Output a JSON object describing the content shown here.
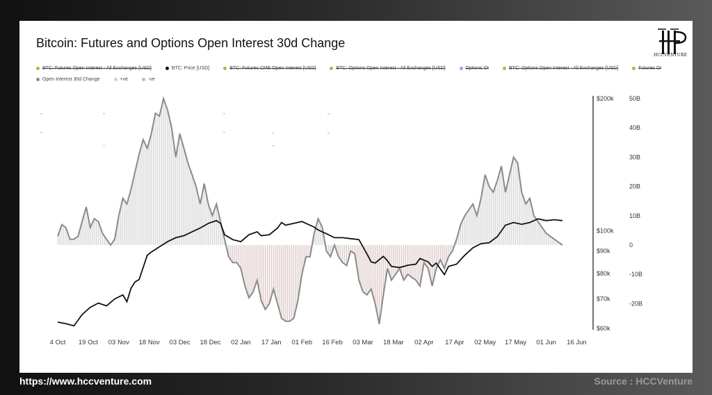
{
  "title": "Bitcoin: Futures and Options Open Interest 30d Change",
  "logo": {
    "text": "HCCVENTURE"
  },
  "footer": {
    "url": "https://www.hccventure.com",
    "source": "Source : HCCVenture"
  },
  "colors": {
    "price": "#111111",
    "oi_line": "#8a8a8a",
    "positive_fill": "#dcdcdc",
    "negative_fill": "#f3c6c6",
    "negative_hatch": "#d98a8a",
    "axis": "#333333"
  },
  "legend": [
    {
      "label": "BTC: Futures Open Interest - All Exchanges [USD]",
      "color": "#a4c23a",
      "struck": true
    },
    {
      "label": "BTC: Price [USD]",
      "color": "#111111",
      "struck": false
    },
    {
      "label": "BTC: Futures CME Open Interest [USD]",
      "color": "#a4c23a",
      "struck": true
    },
    {
      "label": "BTC: Options Open Interest - All Exchanges [USD]",
      "color": "#a4c23a",
      "struck": true
    },
    {
      "label": "Options OI",
      "color": "#8fa8e6",
      "struck": true
    },
    {
      "label": "BTC: Options Open Interest - All Exchanges [USD]",
      "color": "#a4c23a",
      "struck": true
    },
    {
      "label": "Futures OI",
      "color": "#a4c23a",
      "struck": true
    },
    {
      "label": "Open Interest 30d Change",
      "color": "#8a8a8a",
      "struck": false
    },
    {
      "label": "+ve",
      "color": "#cfcfcf",
      "struck": false
    },
    {
      "label": "-ve",
      "color": "#bdbdbd",
      "struck": false
    }
  ],
  "chart_data": {
    "type": "area",
    "x_tick_labels": [
      "4 Oct",
      "19 Oct",
      "03 Nov",
      "18 Nov",
      "03 Dec",
      "18 Dec",
      "02 Jan",
      "17 Jan",
      "01 Feb",
      "16 Feb",
      "03 Mar",
      "18 Mar",
      "02 Apr",
      "17 Apr",
      "02 May",
      "17 May",
      "01 Jun",
      "16 Jun"
    ],
    "x_range_days": [
      0,
      260
    ],
    "y_left": {
      "tick_labels": [
        "$200k",
        "$100k",
        "$90k",
        "$80k",
        "$70k",
        "$60k"
      ],
      "tick_values": [
        200000,
        100000,
        90000,
        80000,
        70000,
        60000
      ],
      "scale": "log",
      "range": [
        60000,
        200000
      ]
    },
    "y_right": {
      "tick_labels": [
        "50B",
        "40B",
        "30B",
        "20B",
        "10B",
        "0",
        "-10B",
        "-20B"
      ],
      "tick_values": [
        50,
        40,
        30,
        20,
        10,
        0,
        -10,
        -20
      ],
      "range": [
        -28,
        50
      ],
      "unit": "B"
    },
    "series": [
      {
        "name": "Open Interest 30d Change",
        "axis": "right",
        "unit": "B",
        "points": [
          [
            0,
            3
          ],
          [
            2,
            7
          ],
          [
            4,
            6
          ],
          [
            6,
            2
          ],
          [
            8,
            2
          ],
          [
            10,
            3
          ],
          [
            12,
            8
          ],
          [
            14,
            13
          ],
          [
            16,
            6
          ],
          [
            18,
            9
          ],
          [
            20,
            8
          ],
          [
            22,
            4
          ],
          [
            24,
            2
          ],
          [
            26,
            0
          ],
          [
            28,
            2
          ],
          [
            30,
            10
          ],
          [
            32,
            16
          ],
          [
            34,
            14
          ],
          [
            36,
            19
          ],
          [
            38,
            25
          ],
          [
            40,
            31
          ],
          [
            42,
            36
          ],
          [
            44,
            33
          ],
          [
            46,
            38
          ],
          [
            48,
            45
          ],
          [
            50,
            44
          ],
          [
            52,
            50
          ],
          [
            54,
            46
          ],
          [
            56,
            40
          ],
          [
            58,
            30
          ],
          [
            60,
            38
          ],
          [
            62,
            33
          ],
          [
            64,
            28
          ],
          [
            66,
            24
          ],
          [
            68,
            20
          ],
          [
            70,
            14
          ],
          [
            72,
            21
          ],
          [
            74,
            14
          ],
          [
            76,
            10
          ],
          [
            78,
            14
          ],
          [
            80,
            8
          ],
          [
            82,
            2
          ],
          [
            84,
            -4
          ],
          [
            86,
            -6
          ],
          [
            88,
            -6
          ],
          [
            90,
            -8
          ],
          [
            92,
            -14
          ],
          [
            94,
            -18
          ],
          [
            96,
            -16
          ],
          [
            98,
            -12
          ],
          [
            100,
            -19
          ],
          [
            102,
            -22
          ],
          [
            104,
            -20
          ],
          [
            106,
            -15
          ],
          [
            108,
            -20
          ],
          [
            110,
            -25
          ],
          [
            112,
            -26
          ],
          [
            114,
            -26
          ],
          [
            116,
            -25
          ],
          [
            118,
            -19
          ],
          [
            120,
            -10
          ],
          [
            122,
            -4
          ],
          [
            124,
            -4
          ],
          [
            126,
            4
          ],
          [
            128,
            9
          ],
          [
            130,
            6
          ],
          [
            132,
            -2
          ],
          [
            134,
            -4
          ],
          [
            136,
            0
          ],
          [
            138,
            -4
          ],
          [
            140,
            -6
          ],
          [
            142,
            -7
          ],
          [
            144,
            -2
          ],
          [
            146,
            -3
          ],
          [
            148,
            -12
          ],
          [
            150,
            -16
          ],
          [
            152,
            -17
          ],
          [
            154,
            -15
          ],
          [
            156,
            -20
          ],
          [
            158,
            -27
          ],
          [
            160,
            -17
          ],
          [
            162,
            -8
          ],
          [
            164,
            -12
          ],
          [
            166,
            -10
          ],
          [
            168,
            -8
          ],
          [
            170,
            -12
          ],
          [
            172,
            -10
          ],
          [
            174,
            -11
          ],
          [
            176,
            -12
          ],
          [
            178,
            -14
          ],
          [
            180,
            -6
          ],
          [
            182,
            -8
          ],
          [
            184,
            -14
          ],
          [
            186,
            -8
          ],
          [
            188,
            -5
          ],
          [
            190,
            -8
          ],
          [
            192,
            -4
          ],
          [
            194,
            -2
          ],
          [
            196,
            2
          ],
          [
            198,
            7
          ],
          [
            200,
            10
          ],
          [
            202,
            12
          ],
          [
            204,
            14
          ],
          [
            206,
            10
          ],
          [
            208,
            16
          ],
          [
            210,
            24
          ],
          [
            212,
            20
          ],
          [
            214,
            18
          ],
          [
            216,
            22
          ],
          [
            218,
            27
          ],
          [
            220,
            18
          ],
          [
            222,
            24
          ],
          [
            224,
            30
          ],
          [
            226,
            28
          ],
          [
            228,
            18
          ],
          [
            230,
            14
          ],
          [
            232,
            16
          ],
          [
            234,
            10
          ],
          [
            236,
            8
          ],
          [
            238,
            6
          ],
          [
            240,
            4
          ],
          [
            242,
            3
          ],
          [
            244,
            2
          ],
          [
            246,
            1
          ],
          [
            248,
            0
          ]
        ]
      },
      {
        "name": "BTC: Price [USD]",
        "axis": "left",
        "unit": "USD",
        "points": [
          [
            0,
            62000
          ],
          [
            4,
            61500
          ],
          [
            8,
            60800
          ],
          [
            12,
            64500
          ],
          [
            16,
            67000
          ],
          [
            20,
            68500
          ],
          [
            24,
            67500
          ],
          [
            28,
            70000
          ],
          [
            32,
            71500
          ],
          [
            34,
            69000
          ],
          [
            36,
            74000
          ],
          [
            38,
            76500
          ],
          [
            40,
            77500
          ],
          [
            44,
            88000
          ],
          [
            46,
            89500
          ],
          [
            50,
            92000
          ],
          [
            54,
            94500
          ],
          [
            58,
            96500
          ],
          [
            62,
            97500
          ],
          [
            66,
            99500
          ],
          [
            70,
            101500
          ],
          [
            74,
            104000
          ],
          [
            78,
            105500
          ],
          [
            80,
            104000
          ],
          [
            82,
            98000
          ],
          [
            86,
            95500
          ],
          [
            90,
            94500
          ],
          [
            94,
            98000
          ],
          [
            98,
            99500
          ],
          [
            100,
            97500
          ],
          [
            104,
            98000
          ],
          [
            108,
            101500
          ],
          [
            110,
            104500
          ],
          [
            112,
            103000
          ],
          [
            116,
            104000
          ],
          [
            120,
            105000
          ],
          [
            122,
            104000
          ],
          [
            126,
            102000
          ],
          [
            128,
            100500
          ],
          [
            132,
            98500
          ],
          [
            136,
            96500
          ],
          [
            140,
            96500
          ],
          [
            144,
            96000
          ],
          [
            148,
            95500
          ],
          [
            152,
            88500
          ],
          [
            154,
            85000
          ],
          [
            156,
            84500
          ],
          [
            158,
            86000
          ],
          [
            160,
            87500
          ],
          [
            162,
            85500
          ],
          [
            164,
            83000
          ],
          [
            168,
            82500
          ],
          [
            172,
            83500
          ],
          [
            176,
            84000
          ],
          [
            178,
            86500
          ],
          [
            182,
            85000
          ],
          [
            184,
            83000
          ],
          [
            186,
            84500
          ],
          [
            190,
            79500
          ],
          [
            192,
            83000
          ],
          [
            196,
            84000
          ],
          [
            198,
            86000
          ],
          [
            200,
            88000
          ],
          [
            204,
            91500
          ],
          [
            208,
            93500
          ],
          [
            212,
            94000
          ],
          [
            216,
            97000
          ],
          [
            220,
            103000
          ],
          [
            224,
            104500
          ],
          [
            228,
            103500
          ],
          [
            232,
            104500
          ],
          [
            236,
            106500
          ],
          [
            240,
            105500
          ],
          [
            244,
            106000
          ],
          [
            248,
            105500
          ]
        ]
      }
    ],
    "grid": false
  }
}
